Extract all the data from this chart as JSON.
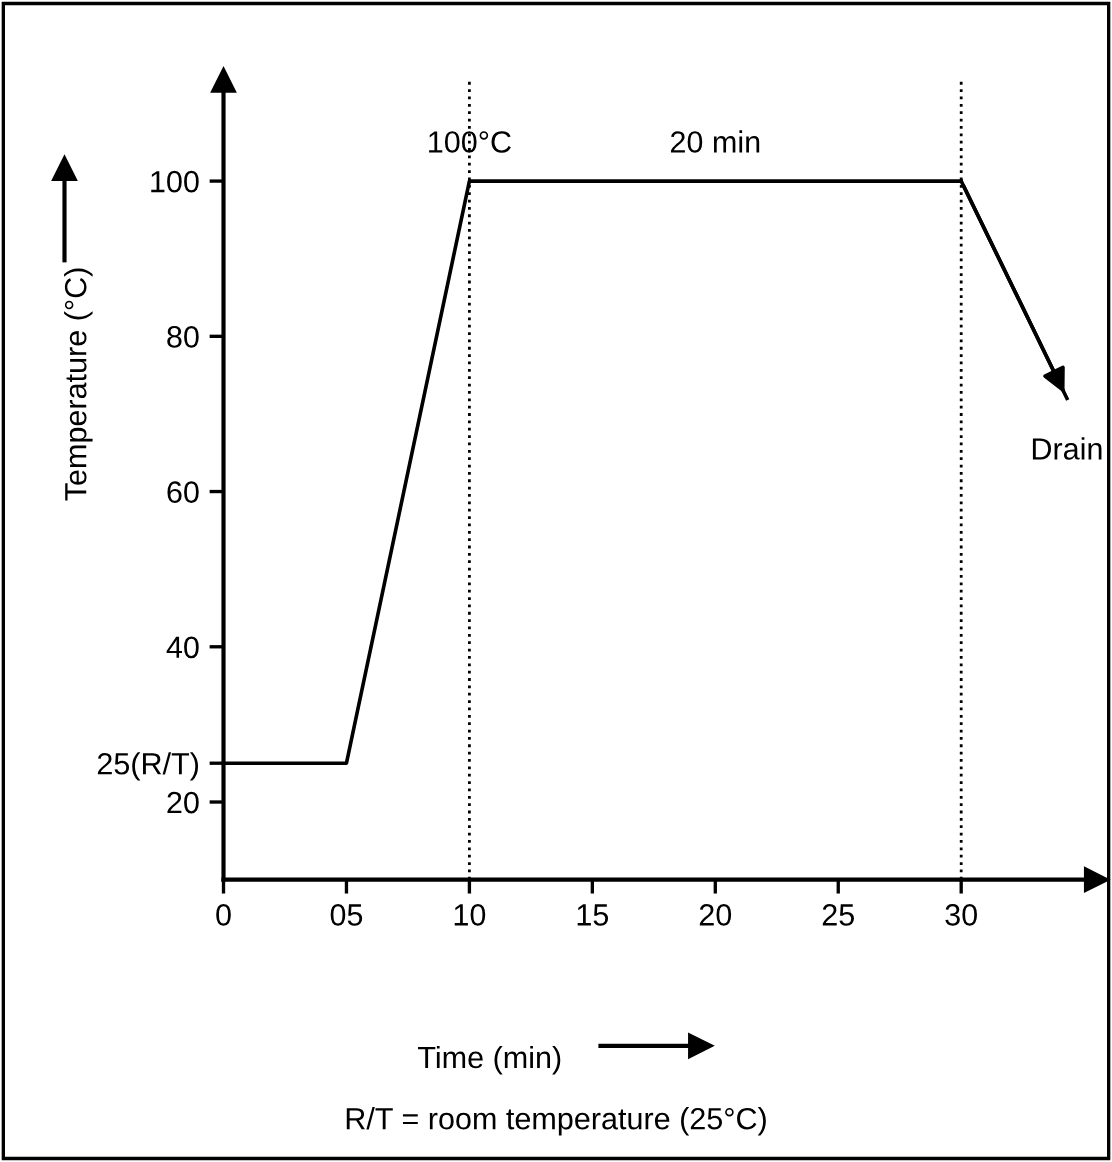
{
  "chart_data": {
    "type": "line",
    "xlabel": "Time (min)",
    "ylabel": "Temperature (°C)",
    "series": [
      {
        "color": "#000000",
        "x": [
          0,
          5,
          10,
          30
        ],
        "values": [
          25,
          25,
          100,
          100
        ]
      },
      {
        "color": "#000000",
        "x": [
          30,
          34.3
        ],
        "values": [
          100,
          72
        ]
      }
    ],
    "xlim": [
      0,
      35.5
    ],
    "xticks": [
      0,
      {
        "value": 5,
        "label": "05"
      },
      10,
      15,
      20,
      25,
      30
    ],
    "ylim": [
      10,
      113
    ],
    "yticks": [
      20,
      {
        "value": 25,
        "label": "25(R/T)"
      },
      40,
      60,
      80,
      100
    ],
    "ref_lines": [
      {
        "axis": "x",
        "value": 10,
        "line_style": "dotted",
        "color": "#000000"
      },
      {
        "axis": "x",
        "value": 30,
        "line_style": "dotted",
        "color": "#000000"
      }
    ],
    "annotations": [
      {
        "text": "100°C",
        "x": 10,
        "y": 100
      },
      {
        "text": "20 min",
        "x": 20,
        "y": 100
      },
      {
        "text": "Drain",
        "x": 34.3,
        "y": 72
      },
      "R/T = room temperature (25°C)"
    ],
    "grid": false,
    "marker": "none",
    "line_style": "solid"
  }
}
